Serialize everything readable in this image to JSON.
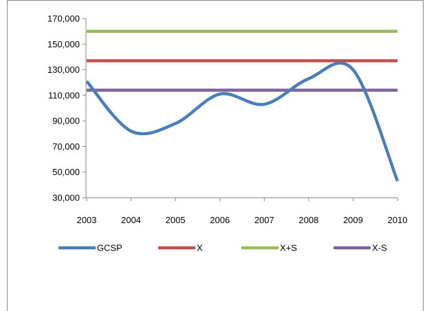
{
  "chart_data": {
    "type": "line",
    "x": [
      "2003",
      "2004",
      "2005",
      "2006",
      "2007",
      "2008",
      "2009",
      "2010"
    ],
    "y_ticks": [
      "30,000",
      "50,000",
      "70,000",
      "90,000",
      "110,000",
      "130,000",
      "150,000",
      "170,000"
    ],
    "ylim": [
      30000,
      170000
    ],
    "grid": false,
    "legend_position": "bottom",
    "series": [
      {
        "name": "GCSP",
        "color": "#4a7ebb",
        "smooth": true,
        "values": [
          121000,
          82000,
          88000,
          111000,
          103000,
          123000,
          130000,
          43000
        ]
      },
      {
        "name": "X",
        "color": "#c0504d",
        "values": [
          137000,
          137000,
          137000,
          137000,
          137000,
          137000,
          137000,
          137000
        ]
      },
      {
        "name": "X+S",
        "color": "#9bbb59",
        "values": [
          160000,
          160000,
          160000,
          160000,
          160000,
          160000,
          160000,
          160000
        ]
      },
      {
        "name": "X-S",
        "color": "#8064a2",
        "values": [
          114000,
          114000,
          114000,
          114000,
          114000,
          114000,
          114000,
          114000
        ]
      }
    ]
  }
}
